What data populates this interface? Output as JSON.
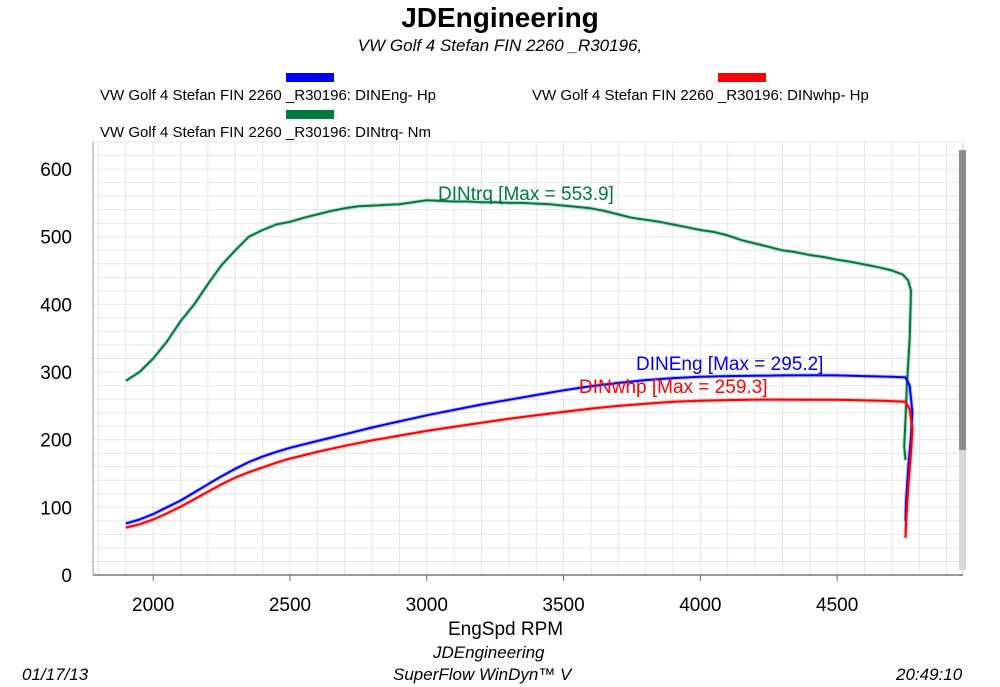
{
  "chart_data": {
    "type": "line",
    "title": "JDEngineering",
    "subtitle": "VW Golf 4   Stefan    FIN 2260  _R30196,",
    "xlabel": "EngSpd  RPM",
    "ylabel": "",
    "xlim": [
      1780,
      4960
    ],
    "ylim": [
      0,
      640
    ],
    "x_ticks": [
      "2000",
      "2500",
      "3000",
      "3500",
      "4000",
      "4500"
    ],
    "y_ticks": [
      "0",
      "100",
      "200",
      "300",
      "400",
      "500",
      "600"
    ],
    "grid": true,
    "legend": [
      {
        "label": "VW Golf 4    Stefan       FIN 2260   _R30196: DINEng- Hp",
        "color": "#0000ff"
      },
      {
        "label": "VW Golf 4    Stefan       FIN 2260   _R30196: DINwhp-  Hp",
        "color": "#ff0000"
      },
      {
        "label": "VW Golf 4    Stefan       FIN 2260   _R30196: DINtrq- Nm",
        "color": "#007a3d"
      }
    ],
    "series": [
      {
        "name": "DINtrq",
        "unit": "Nm",
        "color": "#007a3d",
        "annotation": "DINtrq [Max = 553.9]",
        "x": [
          1900,
          1950,
          2000,
          2050,
          2100,
          2150,
          2200,
          2250,
          2300,
          2350,
          2400,
          2450,
          2500,
          2550,
          2600,
          2650,
          2700,
          2750,
          2800,
          2850,
          2900,
          2950,
          3000,
          3050,
          3100,
          3150,
          3200,
          3250,
          3300,
          3350,
          3400,
          3450,
          3500,
          3550,
          3600,
          3650,
          3700,
          3750,
          3800,
          3850,
          3900,
          3950,
          4000,
          4050,
          4100,
          4150,
          4200,
          4250,
          4300,
          4350,
          4400,
          4450,
          4500,
          4550,
          4600,
          4650,
          4700,
          4740,
          4760,
          4770,
          4765,
          4755,
          4750,
          4745,
          4750
        ],
        "y": [
          287,
          300,
          320,
          345,
          375,
          400,
          430,
          458,
          480,
          500,
          510,
          518,
          522,
          528,
          533,
          538,
          542,
          545,
          546,
          547,
          548,
          551,
          553.9,
          553,
          552,
          552,
          551,
          551,
          550,
          550,
          549,
          548,
          546,
          544,
          542,
          538,
          533,
          528,
          525,
          522,
          518,
          514,
          510,
          507,
          502,
          495,
          490,
          485,
          480,
          477,
          473,
          470,
          466,
          463,
          459,
          455,
          450,
          444,
          435,
          420,
          350,
          280,
          230,
          190,
          170
        ]
      },
      {
        "name": "DINEng",
        "unit": "Hp",
        "color": "#0000ff",
        "annotation": "DINEng [Max = 295.2]",
        "x": [
          1900,
          1950,
          2000,
          2050,
          2100,
          2150,
          2200,
          2250,
          2300,
          2350,
          2400,
          2450,
          2500,
          2600,
          2700,
          2800,
          2900,
          3000,
          3100,
          3200,
          3300,
          3400,
          3500,
          3600,
          3700,
          3800,
          3900,
          4000,
          4100,
          4200,
          4300,
          4400,
          4500,
          4600,
          4700,
          4750,
          4765,
          4775,
          4770,
          4760,
          4752,
          4750
        ],
        "y": [
          76,
          82,
          90,
          100,
          110,
          122,
          134,
          146,
          157,
          167,
          175,
          182,
          188,
          198,
          208,
          218,
          227,
          236,
          244,
          252,
          259,
          266,
          273,
          279,
          284,
          288,
          291,
          293,
          294,
          294.5,
          295,
          295.2,
          295,
          294,
          293,
          292,
          280,
          240,
          205,
          160,
          110,
          80
        ]
      },
      {
        "name": "DINwhp",
        "unit": "Hp",
        "color": "#ff0000",
        "annotation": "DINwhp [Max = 259.3]",
        "x": [
          1900,
          1950,
          2000,
          2050,
          2100,
          2150,
          2200,
          2250,
          2300,
          2350,
          2400,
          2450,
          2500,
          2600,
          2700,
          2800,
          2900,
          3000,
          3100,
          3200,
          3300,
          3400,
          3500,
          3600,
          3700,
          3800,
          3900,
          4000,
          4100,
          4200,
          4300,
          4400,
          4500,
          4600,
          4700,
          4750,
          4765,
          4775,
          4770,
          4760,
          4752,
          4750
        ],
        "y": [
          70,
          75,
          82,
          91,
          101,
          112,
          123,
          134,
          144,
          152,
          159,
          166,
          172,
          182,
          191,
          199,
          206,
          213,
          219,
          225,
          231,
          236,
          241,
          246,
          250,
          253,
          256,
          257.5,
          258.5,
          259.3,
          259.3,
          259,
          259,
          258,
          257,
          256,
          245,
          215,
          180,
          130,
          80,
          55
        ]
      }
    ],
    "footer": {
      "date": "01/17/13",
      "company": "JDEngineering",
      "software": "SuperFlow WinDyn™ V",
      "time": "20:49:10"
    }
  }
}
